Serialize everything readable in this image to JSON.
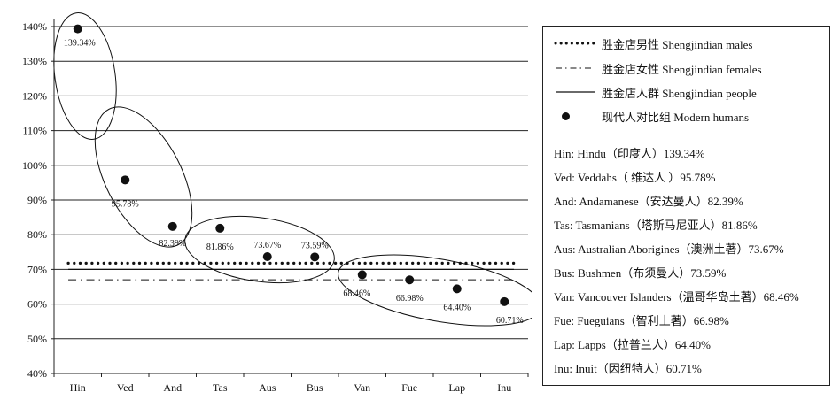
{
  "chart_data": {
    "type": "scatter",
    "categories": [
      "Hin",
      "Ved",
      "And",
      "Tas",
      "Aus",
      "Bus",
      "Van",
      "Fue",
      "Lap",
      "Inu"
    ],
    "y_ticks": [
      "40%",
      "50%",
      "60%",
      "70%",
      "80%",
      "90%",
      "100%",
      "110%",
      "120%",
      "130%",
      "140%"
    ],
    "ylim": [
      40,
      140
    ],
    "grid": true,
    "legend_position": "right",
    "series": [
      {
        "name": "胜金店男性 Shengjindian males",
        "style": "dotted",
        "values": [
          71.8,
          71.8,
          71.8,
          71.8,
          71.8,
          71.8,
          71.8,
          71.8,
          71.8,
          71.8
        ]
      },
      {
        "name": "胜金店女性 Shengjindian females",
        "style": "dash-dot",
        "values": [
          67.0,
          67.0,
          67.0,
          67.0,
          67.0,
          67.0,
          67.0,
          67.0,
          67.0,
          67.0
        ]
      },
      {
        "name": "胜金店人群 Shengjindian people",
        "style": "solid",
        "values": [
          70.0,
          70.0,
          70.0,
          70.0,
          70.0,
          70.0,
          70.0,
          70.0,
          70.0,
          70.0
        ]
      },
      {
        "name": "现代人对比组 Modern humans",
        "style": "marker",
        "values": [
          139.34,
          95.78,
          82.39,
          81.86,
          73.67,
          73.59,
          68.46,
          66.98,
          64.4,
          60.71
        ],
        "labels": [
          "139.34%",
          "95.78%",
          "82.39%",
          "81.86%",
          "73.67%",
          "73.59%",
          "68.46%",
          "66.98%",
          "64.40%",
          "60.71%"
        ]
      }
    ],
    "annotations": [
      "Hin: Hindu（印度人）139.34%",
      "Ved: Veddahs（ 维达人 ）95.78%",
      "And: Andamanese（安达曼人）82.39%",
      "Tas: Tasmanians（塔斯马尼亚人）81.86%",
      "Aus: Australian Aborigines（澳洲土著）73.67%",
      "Bus: Bushmen（布须曼人）73.59%",
      "Van: Vancouver Islanders（温哥华岛土著）68.46%",
      "Fue: Fueguians（智利土著）66.98%",
      "Lap: Lapps（拉普兰人）64.40%",
      "Inu: Inuit（因纽特人）60.71%"
    ]
  }
}
